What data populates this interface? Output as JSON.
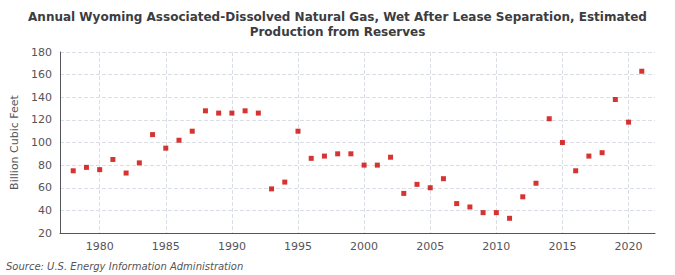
{
  "chart_data": {
    "type": "scatter",
    "title": "Annual Wyoming Associated-Dissolved Natural Gas, Wet After Lease Separation, Estimated\nProduction from Reserves",
    "ylabel": "Billion Cubic Feet",
    "source": "Source: U.S. Energy Information Administration",
    "x": [
      1978,
      1979,
      1980,
      1981,
      1982,
      1983,
      1984,
      1985,
      1986,
      1987,
      1988,
      1989,
      1990,
      1991,
      1992,
      1993,
      1994,
      1995,
      1996,
      1997,
      1998,
      1999,
      2000,
      2001,
      2002,
      2003,
      2004,
      2005,
      2006,
      2007,
      2008,
      2009,
      2010,
      2011,
      2012,
      2013,
      2014,
      2015,
      2016,
      2017,
      2018,
      2019,
      2020,
      2021
    ],
    "values": [
      75,
      78,
      76,
      85,
      73,
      82,
      107,
      95,
      102,
      110,
      128,
      126,
      126,
      128,
      126,
      59,
      65,
      110,
      86,
      88,
      90,
      90,
      80,
      80,
      87,
      55,
      63,
      60,
      68,
      46,
      43,
      38,
      38,
      33,
      52,
      64,
      121,
      100,
      75,
      88,
      91,
      138,
      118,
      163
    ],
    "color": "#cc0000",
    "marker": "square",
    "xlim": [
      1977,
      2022
    ],
    "xticks": [
      1980,
      1985,
      1990,
      1995,
      2000,
      2005,
      2010,
      2015,
      2020
    ],
    "ylim": [
      20,
      180
    ],
    "yticks": [
      20,
      40,
      60,
      80,
      100,
      120,
      140,
      160,
      180
    ],
    "grid": true
  }
}
